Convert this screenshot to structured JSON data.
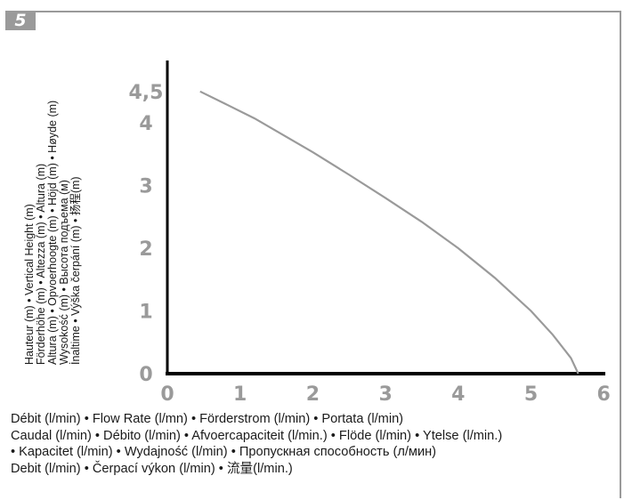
{
  "figure_number": "5",
  "chart_data": {
    "type": "line",
    "ylabel_lines": [
      "Hauteur (m) • Vertical Height (m)",
      "Förderhöhe (m) • Altezza (m) • Altura (m)",
      "Altura (m) • Opvoerhoogte (m) • Höjd (m) • Høyde (m)",
      "Wysokość (m) • Высота подъема (м)",
      "İnaltime • Výška čerpání (m) • 扬程(m)"
    ],
    "xlabel_lines": [
      "Débit (l/min) • Flow Rate (l/mn) • Förderstrom (l/min) • Portata (l/min)",
      "Caudal (l/min) • Débito (l/min) • Afvoercapaciteit (l/min.) • Flöde (l/min) • Ytelse (l/min.)",
      "• Kapacitet (l/min) • Wydajność (l/min) • Пропускная способность (л/мин)",
      "Debit (l/min) • Čerpací výkon (l/min) • 流量(l/min.)"
    ],
    "x_ticks": [
      "0",
      "1",
      "2",
      "3",
      "4",
      "5",
      "6"
    ],
    "y_ticks": [
      "0",
      "1",
      "2",
      "3",
      "4",
      "4,5"
    ],
    "xlim": [
      0,
      6.1
    ],
    "ylim": [
      0,
      5
    ],
    "grid": false,
    "series": [
      {
        "x": [
          0.45,
          0.8,
          1.2,
          1.6,
          2.0,
          2.5,
          3.0,
          3.5,
          4.0,
          4.5,
          5.0,
          5.3,
          5.55,
          5.65
        ],
        "y": [
          4.5,
          4.3,
          4.07,
          3.8,
          3.53,
          3.17,
          2.8,
          2.42,
          2.0,
          1.53,
          1.0,
          0.62,
          0.25,
          0.0
        ]
      }
    ],
    "colors": {
      "curve": "#9a9a9a",
      "axis": "#000000",
      "tick_labels": "#9a9a9a",
      "frame": "#9a9a9a"
    }
  }
}
